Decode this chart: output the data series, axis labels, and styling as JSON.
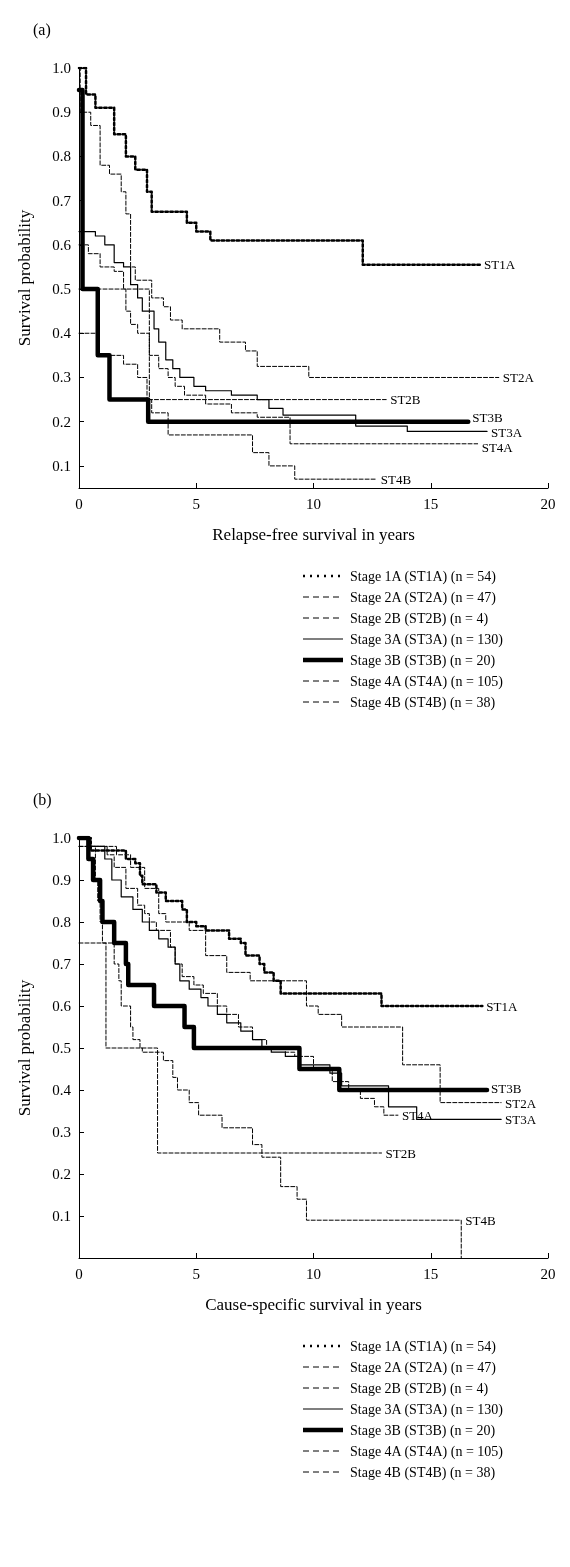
{
  "chart_data": [
    {
      "type": "step",
      "title": "(a)",
      "xlabel": "Relapse-free survival in years",
      "ylabel": "Survival probability",
      "xlim": [
        0,
        20
      ],
      "xticks": [
        0,
        5,
        10,
        15,
        20
      ],
      "ylim": [
        0.05,
        1.0
      ],
      "yticks": [
        0.1,
        0.2,
        0.3,
        0.4,
        0.5,
        0.6,
        0.7,
        0.8,
        0.9,
        {
          "value": 1.0,
          "label": "1.0"
        }
      ],
      "legend": "bottom",
      "series": [
        {
          "name": "Stage 1A (ST1A) (n = 54)",
          "color": "#000000",
          "line_style": "dotted",
          "x": [
            0,
            0.3,
            0.7,
            1.5,
            2.0,
            2.4,
            2.9,
            3.1,
            4.6,
            5.0,
            5.6,
            12.1,
            17.1
          ],
          "values": [
            1.0,
            0.94,
            0.91,
            0.85,
            0.8,
            0.77,
            0.72,
            0.675,
            0.65,
            0.63,
            0.61,
            0.555,
            0.555
          ]
        },
        {
          "name": "Stage 2A (ST2A) (n = 47)",
          "color": "#000000",
          "line_style": "dashed",
          "x": [
            0,
            0.05,
            0.5,
            0.9,
            1.3,
            1.8,
            2.0,
            2.2,
            2.4,
            3.1,
            3.6,
            3.9,
            4.4,
            6.0,
            7.1,
            7.6,
            9.8,
            17.9
          ],
          "values": [
            1.0,
            0.9,
            0.87,
            0.78,
            0.76,
            0.72,
            0.67,
            0.55,
            0.52,
            0.48,
            0.46,
            0.43,
            0.41,
            0.38,
            0.36,
            0.325,
            0.3,
            0.3
          ]
        },
        {
          "name": "Stage 2B (ST2B) (n = 4)",
          "color": "#000000",
          "line_style": "dashed",
          "x": [
            0,
            3.0,
            13.1
          ],
          "values": [
            0.5,
            0.25,
            0.25
          ]
        },
        {
          "name": "Stage 3A (ST3A) (n = 130)",
          "color": "#000000",
          "line_style": "solid",
          "x": [
            0,
            0.7,
            1.1,
            1.5,
            1.9,
            2.2,
            2.5,
            2.7,
            3.2,
            3.4,
            3.7,
            4.0,
            4.3,
            4.9,
            5.4,
            6.5,
            7.6,
            8.1,
            8.7,
            11.8,
            14.0,
            17.4
          ],
          "values": [
            0.63,
            0.62,
            0.6,
            0.56,
            0.55,
            0.51,
            0.48,
            0.45,
            0.41,
            0.38,
            0.34,
            0.32,
            0.3,
            0.28,
            0.27,
            0.26,
            0.25,
            0.23,
            0.215,
            0.19,
            0.178,
            0.178
          ]
        },
        {
          "name": "Stage 3B (ST3B) (n = 20)",
          "color": "#000000",
          "line_style": "solid",
          "x": [
            0,
            0.15,
            0.8,
            1.3,
            2.95,
            16.6
          ],
          "values": [
            0.95,
            0.5,
            0.35,
            0.25,
            0.2,
            0.2
          ]
        },
        {
          "name": "Stage 4A (ST4A) (n = 105)",
          "color": "#000000",
          "line_style": "dashed",
          "x": [
            0,
            0.4,
            0.9,
            1.5,
            1.9,
            2.0,
            2.2,
            2.5,
            3.0,
            3.4,
            3.8,
            4.1,
            4.5,
            5.4,
            6.5,
            7.6,
            9.0,
            17.0
          ],
          "values": [
            0.6,
            0.58,
            0.55,
            0.54,
            0.5,
            0.45,
            0.42,
            0.4,
            0.35,
            0.32,
            0.3,
            0.28,
            0.26,
            0.24,
            0.22,
            0.21,
            0.15,
            0.15
          ]
        },
        {
          "name": "Stage 4B (ST4B) (n = 38)",
          "color": "#000000",
          "line_style": "dashed",
          "x": [
            0,
            0.8,
            1.9,
            2.5,
            2.9,
            3.1,
            3.8,
            7.4,
            8.1,
            9.2,
            12.7
          ],
          "values": [
            0.4,
            0.35,
            0.33,
            0.3,
            0.25,
            0.22,
            0.17,
            0.13,
            0.1,
            0.07,
            0.07
          ]
        }
      ],
      "annotations": [
        {
          "text": "ST1A",
          "x": 17.1,
          "y": 0.555
        },
        {
          "text": "ST2A",
          "x": 17.9,
          "y": 0.3
        },
        {
          "text": "ST2B",
          "x": 13.1,
          "y": 0.25
        },
        {
          "text": "ST3B",
          "x": 16.6,
          "y": 0.2
        },
        {
          "text": "ST3A",
          "x": 17.4,
          "y": 0.178
        },
        {
          "text": "ST4A",
          "x": 17.0,
          "y": 0.15
        },
        {
          "text": "ST4B",
          "x": 12.7,
          "y": 0.07
        }
      ]
    },
    {
      "type": "step",
      "title": "(b)",
      "xlabel": "Cause-specific survival in years",
      "ylabel": "Survival probability",
      "xlim": [
        0,
        20
      ],
      "xticks": [
        0,
        5,
        10,
        15,
        20
      ],
      "ylim": [
        0,
        1.0
      ],
      "yticks": [
        0.1,
        0.2,
        0.3,
        0.4,
        0.5,
        0.6,
        0.7,
        0.8,
        0.9,
        {
          "value": 1.0,
          "label": "1.0"
        }
      ],
      "legend": "bottom",
      "series": [
        {
          "name": "Stage 1A (ST1A) (n = 54)",
          "color": "#000000",
          "line_style": "dotted",
          "x": [
            0,
            0.5,
            2.0,
            2.4,
            2.6,
            2.7,
            3.3,
            3.7,
            4.4,
            4.6,
            5.0,
            5.4,
            6.4,
            6.9,
            7.1,
            7.7,
            7.9,
            8.3,
            8.6,
            12.9,
            17.2
          ],
          "values": [
            1.0,
            0.97,
            0.95,
            0.94,
            0.91,
            0.89,
            0.87,
            0.85,
            0.83,
            0.8,
            0.79,
            0.78,
            0.76,
            0.75,
            0.72,
            0.7,
            0.68,
            0.66,
            0.63,
            0.6,
            0.6
          ]
        },
        {
          "name": "Stage 2A (ST2A) (n = 47)",
          "color": "#000000",
          "line_style": "dashed",
          "x": [
            0,
            1.6,
            2.2,
            2.8,
            3.4,
            3.7,
            4.7,
            5.4,
            6.3,
            7.3,
            9.7,
            10.2,
            11.2,
            13.8,
            15.4,
            18.0
          ],
          "values": [
            0.98,
            0.96,
            0.93,
            0.88,
            0.82,
            0.8,
            0.78,
            0.72,
            0.68,
            0.66,
            0.6,
            0.58,
            0.55,
            0.46,
            0.37,
            0.37
          ]
        },
        {
          "name": "Stage 2B (ST2B) (n = 4)",
          "color": "#000000",
          "line_style": "dashed",
          "x": [
            0,
            1.15,
            3.35,
            12.9
          ],
          "values": [
            0.75,
            0.5,
            0.25,
            0.25
          ]
        },
        {
          "name": "Stage 3A (ST3A) (n = 130)",
          "color": "#000000",
          "line_style": "solid",
          "x": [
            0,
            0.4,
            1.1,
            1.4,
            1.8,
            2.3,
            2.7,
            3.0,
            3.4,
            3.8,
            4.1,
            4.3,
            4.7,
            5.2,
            5.5,
            5.9,
            6.3,
            6.9,
            7.4,
            7.8,
            8.2,
            8.8,
            9.4,
            10.7,
            11.2,
            13.2,
            14.4,
            18.0
          ],
          "values": [
            1.0,
            0.98,
            0.95,
            0.9,
            0.86,
            0.83,
            0.8,
            0.78,
            0.76,
            0.74,
            0.7,
            0.66,
            0.64,
            0.62,
            0.6,
            0.58,
            0.56,
            0.54,
            0.52,
            0.5,
            0.49,
            0.48,
            0.46,
            0.44,
            0.41,
            0.36,
            0.33,
            0.33
          ]
        },
        {
          "name": "Stage 3B (ST3B) (n = 20)",
          "color": "#000000",
          "line_style": "solid",
          "x": [
            0,
            0.4,
            0.6,
            0.9,
            1.0,
            1.5,
            2.0,
            2.1,
            3.2,
            4.5,
            4.9,
            9.4,
            11.1,
            17.4
          ],
          "values": [
            1.0,
            0.95,
            0.9,
            0.85,
            0.8,
            0.75,
            0.7,
            0.65,
            0.6,
            0.55,
            0.5,
            0.45,
            0.4,
            0.4
          ]
        },
        {
          "name": "Stage 4A (ST4A) (n = 105)",
          "color": "#000000",
          "line_style": "dashed",
          "x": [
            0,
            0.4,
            1.2,
            1.5,
            2.0,
            2.5,
            2.8,
            3.0,
            3.3,
            3.9,
            4.1,
            4.4,
            4.9,
            5.3,
            5.9,
            6.3,
            6.8,
            7.4,
            8.0,
            8.8,
            9.2,
            10.0,
            10.8,
            11.5,
            12.0,
            12.6,
            13.0,
            13.6
          ],
          "values": [
            1.0,
            0.98,
            0.96,
            0.93,
            0.88,
            0.84,
            0.82,
            0.8,
            0.78,
            0.74,
            0.7,
            0.67,
            0.65,
            0.63,
            0.6,
            0.58,
            0.55,
            0.52,
            0.5,
            0.49,
            0.48,
            0.45,
            0.42,
            0.4,
            0.38,
            0.36,
            0.34,
            0.34
          ]
        },
        {
          "name": "Stage 4B (ST4B) (n = 38)",
          "color": "#000000",
          "line_style": "dashed",
          "x": [
            0,
            0.7,
            0.8,
            0.9,
            1.0,
            1.5,
            1.7,
            1.8,
            2.2,
            2.3,
            2.6,
            2.7,
            3.6,
            4.0,
            4.2,
            4.7,
            5.1,
            6.1,
            7.4,
            7.8,
            8.6,
            9.3,
            9.7,
            16.3
          ],
          "values": [
            0.98,
            0.9,
            0.85,
            0.8,
            0.75,
            0.7,
            0.66,
            0.6,
            0.55,
            0.52,
            0.5,
            0.49,
            0.47,
            0.43,
            0.4,
            0.37,
            0.34,
            0.31,
            0.27,
            0.24,
            0.17,
            0.14,
            0.09,
            0
          ]
        }
      ],
      "annotations": [
        {
          "text": "ST1A",
          "x": 17.2,
          "y": 0.6
        },
        {
          "text": "ST3B",
          "x": 17.4,
          "y": 0.4
        },
        {
          "text": "ST2A",
          "x": 18.0,
          "y": 0.37
        },
        {
          "text": "ST3A",
          "x": 18.0,
          "y": 0.33
        },
        {
          "text": "ST4A",
          "x": 13.6,
          "y": 0.34
        },
        {
          "text": "ST2B",
          "x": 12.9,
          "y": 0.25
        },
        {
          "text": "ST4B",
          "x": 16.3,
          "y": 0.09
        }
      ]
    }
  ]
}
